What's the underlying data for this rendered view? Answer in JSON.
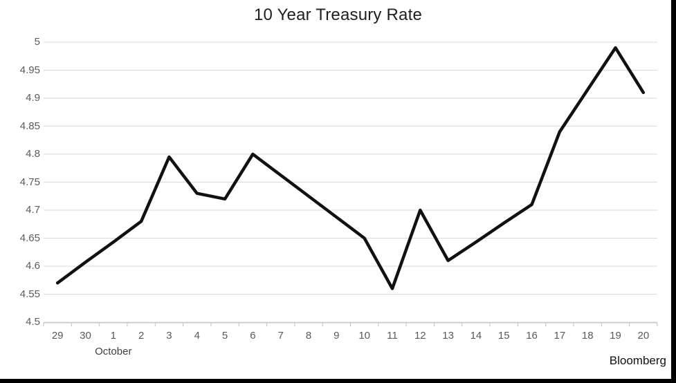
{
  "title": "10 Year Treasury Rate",
  "source_label": "Bloomberg",
  "month_label": "October",
  "colors": {
    "line": "#111111",
    "grid": "#d9d9d9",
    "axis": "#bfbfbf",
    "tick_label": "#595959",
    "title": "#1f1f1f",
    "border": "#000000",
    "background": "#ffffff"
  },
  "chart_data": {
    "type": "line",
    "title": "10 Year Treasury Rate",
    "xlabel": "October",
    "ylabel": "",
    "x": [
      "29",
      "30",
      "1",
      "2",
      "3",
      "4",
      "5",
      "6",
      "7",
      "8",
      "9",
      "10",
      "11",
      "12",
      "13",
      "14",
      "15",
      "16",
      "17",
      "18",
      "19",
      "20"
    ],
    "series": [
      {
        "name": "10 Year Treasury Rate",
        "values": [
          4.57,
          4.607,
          4.643,
          4.68,
          4.795,
          4.73,
          4.72,
          4.8,
          4.7625,
          4.725,
          4.6875,
          4.65,
          4.56,
          4.7,
          4.61,
          4.643,
          4.677,
          4.71,
          4.84,
          4.915,
          4.99,
          4.91
        ]
      }
    ],
    "ylim": [
      4.5,
      5.0
    ],
    "ytick_interval": 0.05,
    "ytick_labels_top_to_bottom": [
      "5",
      "4.95",
      "4.9",
      "4.85",
      "4.8",
      "4.75",
      "4.7",
      "4.65",
      "4.6",
      "4.55",
      "4.5"
    ],
    "grid": "horizontal",
    "legend": "none",
    "source": "Bloomberg",
    "line_width": 4.5
  }
}
